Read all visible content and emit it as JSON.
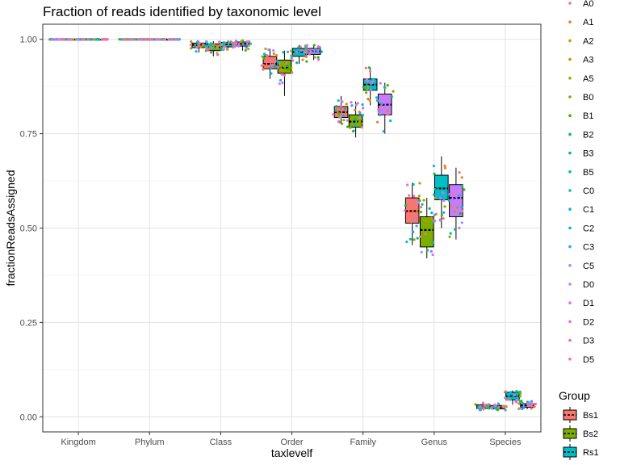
{
  "chart_data": {
    "type": "box",
    "title": "Fraction of reads identified by taxonomic level",
    "xlabel": "taxlevelf",
    "ylabel": "fractionReadsAssigned",
    "categories": [
      "Kingdom",
      "Phylum",
      "Class",
      "Order",
      "Family",
      "Genus",
      "Species"
    ],
    "ylim": [
      -0.04,
      1.04
    ],
    "yticks": [
      0.0,
      0.25,
      0.5,
      0.75,
      1.0
    ],
    "ytick_labels": [
      "0.00",
      "0.25",
      "0.50",
      "0.75",
      "1.00"
    ],
    "grid": true,
    "legend_position": "right",
    "sample_legend": [
      "A0",
      "A1",
      "A2",
      "A3",
      "A5",
      "B0",
      "B1",
      "B2",
      "B3",
      "B5",
      "C0",
      "C1",
      "C2",
      "C3",
      "C5",
      "D0",
      "D1",
      "D2",
      "D3",
      "D5"
    ],
    "sample_colors": [
      "#F8766D",
      "#EA8331",
      "#D89000",
      "#C09B00",
      "#A3A500",
      "#7CAE00",
      "#39B600",
      "#00BB4E",
      "#00BF7D",
      "#00C1A3",
      "#00BFC4",
      "#00BAE0",
      "#00B0F6",
      "#35A2FF",
      "#9590FF",
      "#C77CFF",
      "#E76BF3",
      "#FA62DB",
      "#FF62BC",
      "#FF6C91"
    ],
    "group_legend_title": "Group",
    "group_legend_visible": [
      "Bs1",
      "Bs2",
      "Rs1"
    ],
    "group_colors": [
      "#F8766D",
      "#7CAE00",
      "#00BFC4",
      "#C77CFF"
    ],
    "series": [
      {
        "name": "Bs1",
        "box": [
          [
            1,
            1,
            1,
            1,
            1
          ],
          [
            1,
            1,
            1,
            1,
            1
          ],
          [
            0.965,
            0.978,
            0.985,
            0.99,
            0.995
          ],
          [
            0.895,
            0.922,
            0.935,
            0.955,
            0.975
          ],
          [
            0.775,
            0.793,
            0.807,
            0.822,
            0.85
          ],
          [
            0.455,
            0.513,
            0.545,
            0.58,
            0.62
          ],
          [
            0.017,
            0.022,
            0.027,
            0.032,
            0.04
          ]
        ]
      },
      {
        "name": "Bs2",
        "box": [
          [
            1,
            1,
            1,
            1,
            1
          ],
          [
            1,
            1,
            1,
            1,
            1
          ],
          [
            0.955,
            0.97,
            0.98,
            0.988,
            0.995
          ],
          [
            0.85,
            0.91,
            0.925,
            0.945,
            0.97
          ],
          [
            0.74,
            0.767,
            0.782,
            0.8,
            0.835
          ],
          [
            0.42,
            0.45,
            0.495,
            0.53,
            0.58
          ],
          [
            0.017,
            0.021,
            0.025,
            0.03,
            0.038
          ]
        ]
      },
      {
        "name": "Rs1",
        "box": [
          [
            1,
            1,
            1,
            1,
            1
          ],
          [
            1,
            1,
            1,
            1,
            1
          ],
          [
            0.97,
            0.98,
            0.987,
            0.992,
            0.997
          ],
          [
            0.935,
            0.955,
            0.967,
            0.976,
            0.985
          ],
          [
            0.825,
            0.865,
            0.88,
            0.895,
            0.925
          ],
          [
            0.5,
            0.575,
            0.605,
            0.64,
            0.69
          ],
          [
            0.032,
            0.045,
            0.055,
            0.065,
            0.07
          ]
        ]
      },
      {
        "name": "",
        "box": [
          [
            1,
            1,
            1,
            1,
            1
          ],
          [
            1,
            1,
            1,
            1,
            1
          ],
          [
            0.97,
            0.982,
            0.988,
            0.993,
            0.997
          ],
          [
            0.945,
            0.96,
            0.968,
            0.976,
            0.985
          ],
          [
            0.75,
            0.8,
            0.827,
            0.855,
            0.885
          ],
          [
            0.47,
            0.53,
            0.58,
            0.615,
            0.66
          ],
          [
            0.02,
            0.025,
            0.03,
            0.035,
            0.042
          ]
        ]
      }
    ]
  }
}
